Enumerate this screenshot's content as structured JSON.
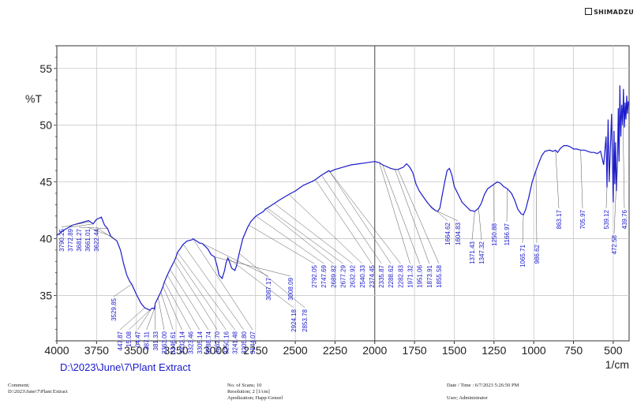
{
  "brand": "SHIMADZU",
  "chart_data": {
    "type": "line",
    "title": "",
    "ylabel": "%T",
    "xlabel": "1/cm",
    "sample_path": "D:\\2023\\June\\7\\Plant Extract",
    "xlim": [
      4000,
      400
    ],
    "ylim": [
      31,
      57
    ],
    "x_ticks": [
      4000,
      3750,
      3500,
      3250,
      3000,
      2750,
      2500,
      2250,
      2000,
      1750,
      1500,
      1250,
      1000,
      750,
      500
    ],
    "y_ticks": [
      35,
      40,
      45,
      50,
      55
    ],
    "grid": true,
    "series": [
      {
        "color": "#1a1acc",
        "x": [
          4000,
          3950,
          3900,
          3850,
          3800,
          3790,
          3772,
          3750,
          3720,
          3700,
          3681,
          3660,
          3622,
          3600,
          3580,
          3560,
          3540,
          3529,
          3500,
          3470,
          3447,
          3430,
          3415,
          3400,
          3387,
          3381,
          3363,
          3346,
          3332,
          3323,
          3305,
          3288,
          3262,
          3250,
          3241,
          3220,
          3205,
          3180,
          3150,
          3144,
          3100,
          3087,
          3050,
          3030,
          3008,
          2990,
          2980,
          2960,
          2945,
          2935,
          2924,
          2915,
          2900,
          2880,
          2870,
          2853,
          2830,
          2800,
          2792,
          2780,
          2747,
          2700,
          2689,
          2677,
          2632,
          2600,
          2540,
          2500,
          2450,
          2400,
          2374,
          2335,
          2300,
          2288,
          2282,
          2250,
          2200,
          2150,
          2100,
          2050,
          2000,
          1971,
          1950,
          1900,
          1873,
          1855,
          1820,
          1800,
          1780,
          1760,
          1740,
          1720,
          1700,
          1680,
          1664,
          1640,
          1620,
          1604,
          1590,
          1575,
          1560,
          1545,
          1530,
          1515,
          1500,
          1450,
          1400,
          1371,
          1347,
          1330,
          1310,
          1290,
          1270,
          1250,
          1230,
          1210,
          1190,
          1166,
          1140,
          1120,
          1100,
          1080,
          1065,
          1050,
          1030,
          1010,
          986,
          970,
          950,
          930,
          900,
          880,
          863,
          850,
          830,
          810,
          790,
          770,
          750,
          730,
          705,
          680,
          660,
          640,
          620,
          600,
          580,
          560,
          545,
          539,
          532,
          525,
          518,
          510,
          500,
          495,
          490,
          485,
          480,
          472,
          468,
          463,
          458,
          452,
          446,
          440,
          436,
          430,
          425,
          420,
          415,
          410,
          405,
          400
        ],
        "y": [
          40.3,
          40.8,
          41.2,
          41.4,
          41.6,
          41.5,
          41.3,
          41.7,
          41.9,
          41.2,
          40.9,
          40.2,
          39.8,
          39.0,
          37.8,
          36.8,
          36.2,
          36.0,
          35.1,
          34.3,
          33.9,
          33.8,
          33.7,
          33.9,
          33.8,
          34.3,
          34.8,
          35.3,
          35.8,
          36.2,
          36.8,
          37.3,
          38.0,
          38.4,
          38.8,
          39.2,
          39.5,
          39.8,
          39.9,
          40.0,
          39.6,
          39.6,
          39.1,
          38.6,
          38.4,
          37.5,
          36.8,
          36.5,
          37.2,
          37.9,
          38.3,
          38.0,
          37.4,
          37.2,
          37.6,
          38.7,
          40.0,
          41.0,
          41.2,
          41.5,
          42.0,
          42.4,
          42.6,
          42.7,
          43.1,
          43.4,
          43.9,
          44.2,
          44.7,
          45.0,
          45.2,
          45.6,
          45.9,
          46.0,
          45.9,
          46.1,
          46.3,
          46.5,
          46.6,
          46.7,
          46.8,
          46.7,
          46.5,
          46.2,
          46.1,
          46.1,
          46.3,
          46.6,
          46.3,
          45.8,
          44.8,
          44.2,
          43.8,
          43.4,
          43.1,
          42.7,
          42.5,
          42.4,
          42.7,
          43.9,
          45.0,
          46.0,
          46.2,
          45.6,
          44.6,
          43.2,
          42.5,
          42.4,
          42.7,
          43.1,
          43.9,
          44.4,
          44.6,
          44.8,
          45.0,
          44.9,
          44.6,
          44.4,
          44.0,
          43.4,
          42.6,
          42.2,
          42.1,
          42.6,
          43.7,
          45.0,
          46.0,
          46.6,
          47.3,
          47.7,
          47.8,
          47.7,
          47.8,
          47.6,
          48.0,
          48.2,
          48.2,
          48.1,
          47.9,
          47.9,
          47.8,
          47.8,
          47.7,
          47.6,
          47.6,
          47.5,
          47.7,
          46.5,
          49.0,
          44.5,
          50.5,
          45.0,
          47.8,
          51.0,
          43.2,
          49.5,
          44.8,
          48.5,
          44.2,
          47.5,
          51.5,
          46.8,
          53.5,
          49.0,
          51.8,
          50.0,
          53.2,
          49.8,
          52.0,
          50.5,
          52.6,
          51.0,
          52.1,
          51.8
        ]
      }
    ],
    "peak_labels_left": [
      "3790.25",
      "3772.89",
      "3681.27",
      "3661.01",
      "3622.44",
      "3529.85",
      "447.87",
      "15.08",
      "04.47",
      "387.11",
      "381.33",
      "3363.00",
      "3346.61",
      "3332.14",
      "3323.46",
      "3305.14",
      "3288.74",
      "3262.70",
      "3250.16",
      "3241.48",
      "3205.80",
      "3144.07",
      "3087.17",
      "3008.09",
      "2924.18",
      "2853.78"
    ],
    "peak_labels_mid": [
      "2792.05",
      "2747.69",
      "2689.82",
      "2677.29",
      "2632.92",
      "2540.33",
      "2374.45",
      "2335.87",
      "2288.62",
      "2282.83",
      "1971.32",
      "1951.06",
      "1873.91",
      "1855.58"
    ],
    "peak_labels_right": [
      "1664.62",
      "1604.83",
      "1371.43",
      "1347.32",
      "1250.88",
      "1166.97",
      "1065.71",
      "986.62",
      "863.17",
      "705.97",
      "539.12",
      "472.58",
      "439.76"
    ]
  },
  "footer": {
    "comment_label": "Comment;",
    "comment_value": "D:\\2023\\June\\7\\Plant Extract",
    "scans": "No. of Scans; 10",
    "resolution": "Resolution;   2 [1/cm]",
    "apodization": "Apodization;  Happ-Genzel",
    "datetime": "Date / Time : 6/7/2023   5:26:50 PM",
    "user": "User;         Administrator"
  }
}
